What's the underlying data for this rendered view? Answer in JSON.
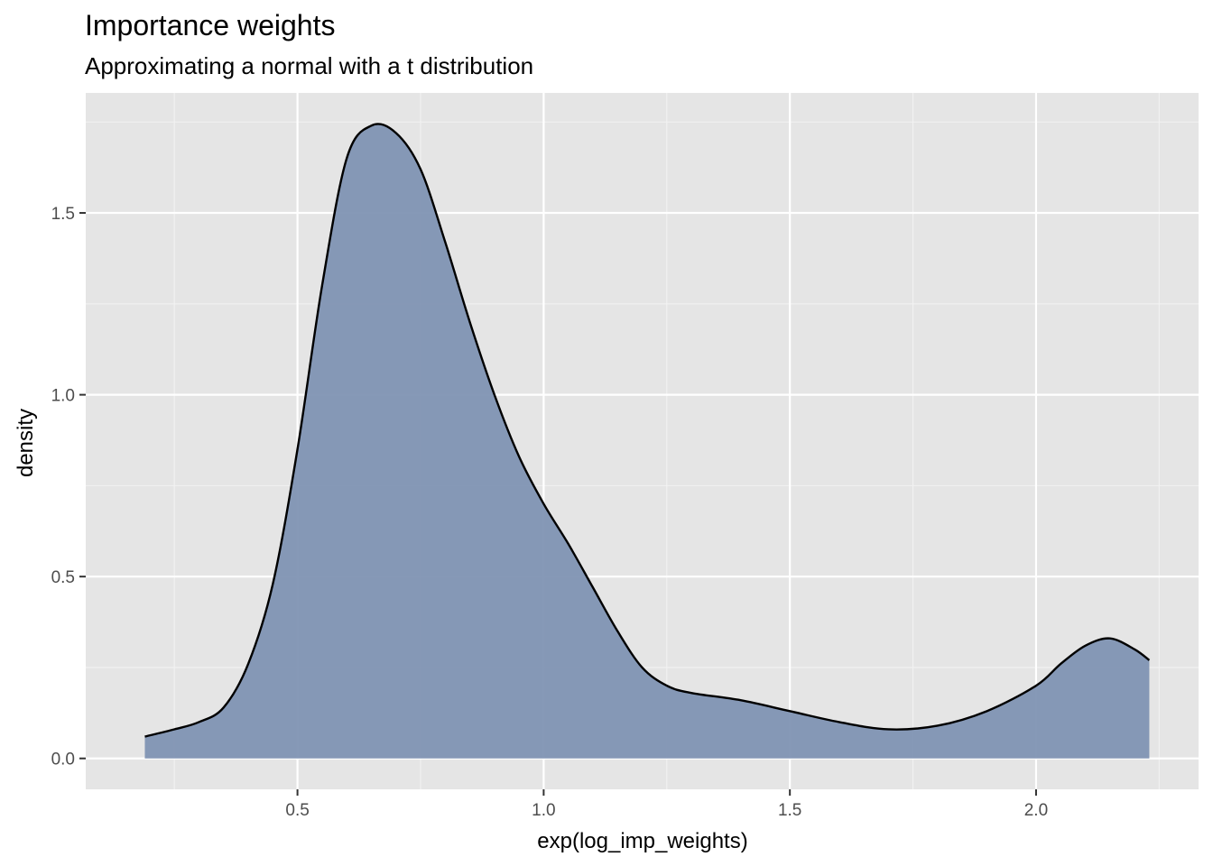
{
  "chart_data": {
    "type": "area",
    "title": "Importance weights",
    "subtitle": "Approximating a normal with a t distribution",
    "xlabel": "exp(log_imp_weights)",
    "ylabel": "density",
    "xlim": [
      0.07,
      2.33
    ],
    "ylim": [
      -0.085,
      1.83
    ],
    "x_ticks": [
      0.5,
      1.0,
      1.5,
      2.0
    ],
    "x_tick_labels": [
      "0.5",
      "1.0",
      "1.5",
      "2.0"
    ],
    "y_ticks": [
      0.0,
      0.5,
      1.0,
      1.5
    ],
    "y_tick_labels": [
      "0.0",
      "0.5",
      "1.0",
      "1.5"
    ],
    "grid": true,
    "fill_color": "#7f93b3",
    "line_color": "#000000",
    "panel_background": "#e5e5e5",
    "series": [
      {
        "x": [
          0.19,
          0.25,
          0.3,
          0.35,
          0.4,
          0.45,
          0.5,
          0.55,
          0.6,
          0.65,
          0.7,
          0.75,
          0.8,
          0.85,
          0.9,
          0.95,
          1.0,
          1.05,
          1.1,
          1.15,
          1.2,
          1.25,
          1.3,
          1.4,
          1.5,
          1.6,
          1.7,
          1.8,
          1.9,
          2.0,
          2.05,
          2.1,
          2.15,
          2.2,
          2.23
        ],
        "y": [
          0.06,
          0.08,
          0.1,
          0.14,
          0.26,
          0.48,
          0.85,
          1.3,
          1.65,
          1.74,
          1.72,
          1.62,
          1.42,
          1.2,
          1.0,
          0.83,
          0.7,
          0.59,
          0.47,
          0.35,
          0.25,
          0.2,
          0.18,
          0.16,
          0.13,
          0.1,
          0.08,
          0.09,
          0.13,
          0.2,
          0.26,
          0.31,
          0.33,
          0.3,
          0.27
        ]
      }
    ]
  }
}
